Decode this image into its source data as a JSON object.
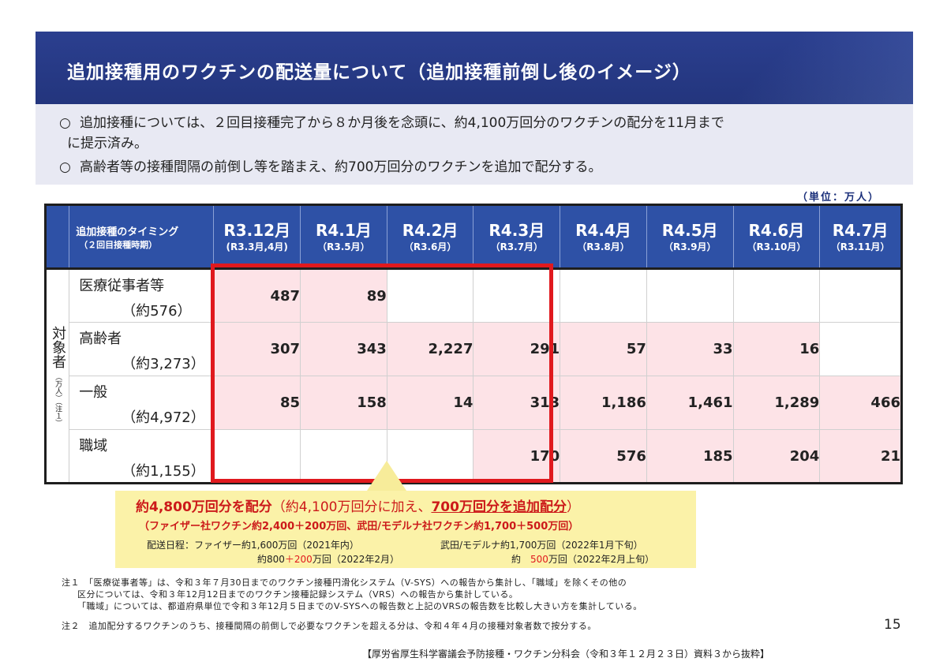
{
  "title": "追加接種用のワクチンの配送量について（追加接種前倒し後のイメージ）",
  "bullets": [
    {
      "marker": "○",
      "line1": "追加接種については、２回目接種完了から８か月後を念頭に、約4,100万回分のワクチンの配分を11月まで",
      "line2": "に提示済み。"
    },
    {
      "marker": "○",
      "line1": "高齢者等の接種間隔の前倒し等を踏まえ、約700万回分のワクチンを追加で配分する。"
    }
  ],
  "unit": "（単位：万人）",
  "table": {
    "header_timing_1": "追加接種のタイミング",
    "header_timing_2": "（２回目接種時期）",
    "columns": [
      {
        "label": "R3.12月",
        "sub": "(R3.3月,4月)"
      },
      {
        "label": "R4.1月",
        "sub": "（R3.5月）"
      },
      {
        "label": "R4.2月",
        "sub": "（R3.6月）"
      },
      {
        "label": "R4.3月",
        "sub": "（R3.7月）"
      },
      {
        "label": "R4.4月",
        "sub": "（R3.8月）"
      },
      {
        "label": "R4.5月",
        "sub": "（R3.9月）"
      },
      {
        "label": "R4.6月",
        "sub": "（R3.10月）"
      },
      {
        "label": "R4.7月",
        "sub": "（R3.11月）"
      }
    ],
    "side_label": "対象者",
    "side_label_small": "（万人）（注１）",
    "rows": [
      {
        "name": "医療従事者等",
        "total": "（約576）",
        "values": [
          "487",
          "89",
          "",
          "",
          "",
          "",
          "",
          ""
        ]
      },
      {
        "name": "高齢者",
        "total": "（約3,273）",
        "values": [
          "307",
          "343",
          "2,227",
          "291",
          "57",
          "33",
          "16",
          ""
        ]
      },
      {
        "name": "一般",
        "total": "（約4,972）",
        "values": [
          "85",
          "158",
          "14",
          "313",
          "1,186",
          "1,461",
          "1,289",
          "466"
        ]
      },
      {
        "name": "職域",
        "total": "（約1,155）",
        "values": [
          "",
          "",
          "",
          "170",
          "576",
          "185",
          "204",
          "21"
        ]
      }
    ]
  },
  "summary": {
    "main_a": "約4,800万回分を配分",
    "main_b": "（約4,100万回分に加え、",
    "main_c": "700万回分を追加配分",
    "main_d": "）",
    "sub": "（ファイザー社ワクチン約2,400＋200万回、武田/モデルナ社ワクチン約1,700＋500万回）",
    "sched_a1": "配送日程：ファイザー約1,600万回（2021年内）",
    "sched_a2_pre": "約800",
    "sched_a2_red": "＋200",
    "sched_a2_post": "万回（2022年2月）",
    "sched_b1": "武田/モデルナ約1,700万回（2022年1月下旬）",
    "sched_b2_pre": "約　",
    "sched_b2_red": "500",
    "sched_b2_post": "万回（2022年2月上旬）"
  },
  "notes": {
    "n1_l1": "注１　「医療従事者等」は、令和３年７月30日までのワクチン接種円滑化システム（V-SYS）への報告から集計し、「職域」を除くその他の",
    "n1_l2": "区分については、令和３年12月12日までのワクチン接種記録システム（VRS）への報告から集計している。",
    "n1_l3": "「職域」については、都道府県単位で令和３年12月５日までのV-SYSへの報告数と上記のVRSの報告数を比較し大きい方を集計している。",
    "n2": "注２　追加配分するワクチンのうち、接種間隔の前倒しで必要なワクチンを超える分は、令和４年４月の接種対象者数で按分する。"
  },
  "page_number": "15",
  "source": "【厚労省厚生科学審議会予防接種・ワクチン分科会（令和３年１２月２３日）資料３から抜粋】"
}
